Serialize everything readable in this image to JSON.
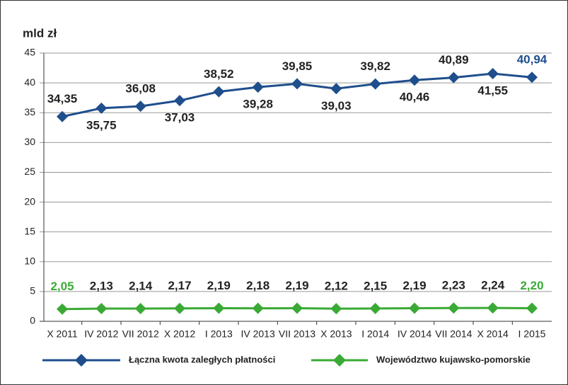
{
  "chart_data": {
    "type": "line",
    "y_label": "mld zł",
    "categories": [
      "X 2011",
      "IV 2012",
      "VII 2012",
      "X 2012",
      "I 2013",
      "IV 2013",
      "VII 2013",
      "X 2013",
      "I 2014",
      "IV 2014",
      "VII 2014",
      "X 2014",
      "I 2015"
    ],
    "series": [
      {
        "name": "Łączna kwota zaległych płatności",
        "color": "#1f4e8c",
        "values": [
          34.35,
          35.75,
          36.08,
          37.03,
          38.52,
          39.28,
          39.85,
          39.03,
          39.82,
          40.46,
          40.89,
          41.55,
          40.94
        ],
        "value_labels": [
          "34,35",
          "35,75",
          "36,08",
          "37,03",
          "38,52",
          "39,28",
          "39,85",
          "39,03",
          "39,82",
          "40,46",
          "40,89",
          "41,55",
          "40,94"
        ]
      },
      {
        "name": "Województwo kujawsko-pomorskie",
        "color": "#3aaa35",
        "values": [
          2.05,
          2.13,
          2.14,
          2.17,
          2.19,
          2.18,
          2.19,
          2.12,
          2.15,
          2.19,
          2.23,
          2.24,
          2.2
        ],
        "value_labels": [
          "2,05",
          "2,13",
          "2,14",
          "2,17",
          "2,19",
          "2,18",
          "2,19",
          "2,12",
          "2,15",
          "2,19",
          "2,23",
          "2,24",
          "2,20"
        ]
      }
    ],
    "ylim": [
      0,
      45
    ],
    "yticks": [
      0,
      5,
      10,
      15,
      20,
      25,
      30,
      35,
      40,
      45
    ],
    "grid": true
  }
}
